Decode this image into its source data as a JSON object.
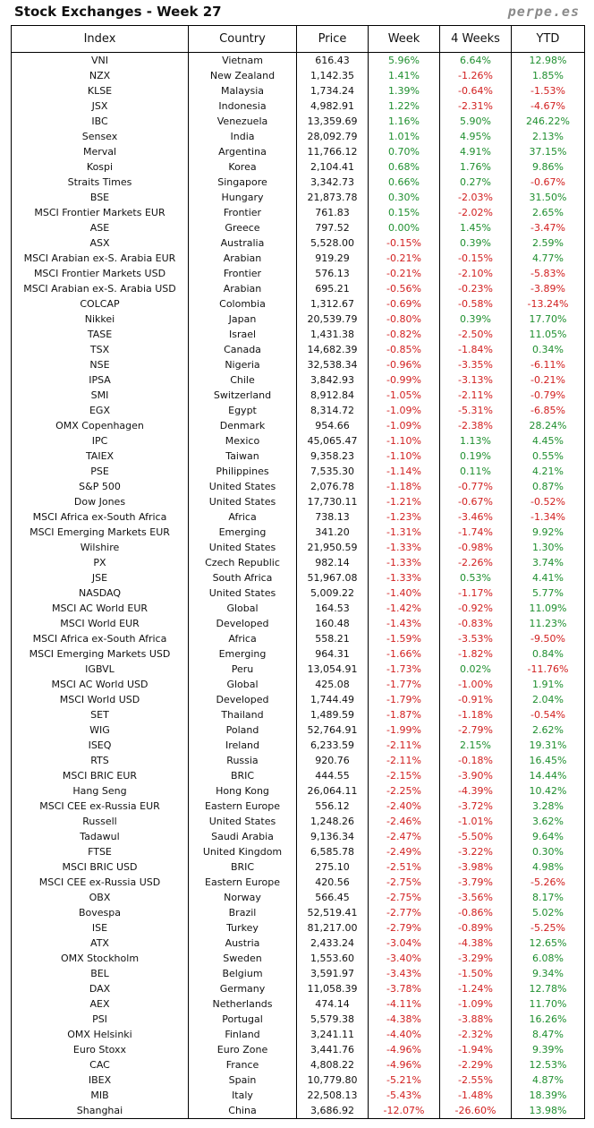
{
  "header": {
    "title": "Stock Exchanges - Week 27",
    "site": "perpe.es"
  },
  "colors": {
    "positive": "#1f8f2f",
    "negative": "#d22020"
  },
  "columns": [
    "Index",
    "Country",
    "Price",
    "Week",
    "4 Weeks",
    "YTD"
  ],
  "rows": [
    [
      "VNI",
      "Vietnam",
      "616.43",
      "5.96%",
      "6.64%",
      "12.98%"
    ],
    [
      "NZX",
      "New Zealand",
      "1,142.35",
      "1.41%",
      "-1.26%",
      "1.85%"
    ],
    [
      "KLSE",
      "Malaysia",
      "1,734.24",
      "1.39%",
      "-0.64%",
      "-1.53%"
    ],
    [
      "JSX",
      "Indonesia",
      "4,982.91",
      "1.22%",
      "-2.31%",
      "-4.67%"
    ],
    [
      "IBC",
      "Venezuela",
      "13,359.69",
      "1.16%",
      "5.90%",
      "246.22%"
    ],
    [
      "Sensex",
      "India",
      "28,092.79",
      "1.01%",
      "4.95%",
      "2.13%"
    ],
    [
      "Merval",
      "Argentina",
      "11,766.12",
      "0.70%",
      "4.91%",
      "37.15%"
    ],
    [
      "Kospi",
      "Korea",
      "2,104.41",
      "0.68%",
      "1.76%",
      "9.86%"
    ],
    [
      "Straits Times",
      "Singapore",
      "3,342.73",
      "0.66%",
      "0.27%",
      "-0.67%"
    ],
    [
      "BSE",
      "Hungary",
      "21,873.78",
      "0.30%",
      "-2.03%",
      "31.50%"
    ],
    [
      "MSCI Frontier Markets EUR",
      "Frontier",
      "761.83",
      "0.15%",
      "-2.02%",
      "2.65%"
    ],
    [
      "ASE",
      "Greece",
      "797.52",
      "0.00%",
      "1.45%",
      "-3.47%"
    ],
    [
      "ASX",
      "Australia",
      "5,528.00",
      "-0.15%",
      "0.39%",
      "2.59%"
    ],
    [
      "MSCI Arabian ex-S. Arabia EUR",
      "Arabian",
      "919.29",
      "-0.21%",
      "-0.15%",
      "4.77%"
    ],
    [
      "MSCI Frontier Markets USD",
      "Frontier",
      "576.13",
      "-0.21%",
      "-2.10%",
      "-5.83%"
    ],
    [
      "MSCI Arabian ex-S. Arabia USD",
      "Arabian",
      "695.21",
      "-0.56%",
      "-0.23%",
      "-3.89%"
    ],
    [
      "COLCAP",
      "Colombia",
      "1,312.67",
      "-0.69%",
      "-0.58%",
      "-13.24%"
    ],
    [
      "Nikkei",
      "Japan",
      "20,539.79",
      "-0.80%",
      "0.39%",
      "17.70%"
    ],
    [
      "TASE",
      "Israel",
      "1,431.38",
      "-0.82%",
      "-2.50%",
      "11.05%"
    ],
    [
      "TSX",
      "Canada",
      "14,682.39",
      "-0.85%",
      "-1.84%",
      "0.34%"
    ],
    [
      "NSE",
      "Nigeria",
      "32,538.34",
      "-0.96%",
      "-3.35%",
      "-6.11%"
    ],
    [
      "IPSA",
      "Chile",
      "3,842.93",
      "-0.99%",
      "-3.13%",
      "-0.21%"
    ],
    [
      "SMI",
      "Switzerland",
      "8,912.84",
      "-1.05%",
      "-2.11%",
      "-0.79%"
    ],
    [
      "EGX",
      "Egypt",
      "8,314.72",
      "-1.09%",
      "-5.31%",
      "-6.85%"
    ],
    [
      "OMX Copenhagen",
      "Denmark",
      "954.66",
      "-1.09%",
      "-2.38%",
      "28.24%"
    ],
    [
      "IPC",
      "Mexico",
      "45,065.47",
      "-1.10%",
      "1.13%",
      "4.45%"
    ],
    [
      "TAIEX",
      "Taiwan",
      "9,358.23",
      "-1.10%",
      "0.19%",
      "0.55%"
    ],
    [
      "PSE",
      "Philippines",
      "7,535.30",
      "-1.14%",
      "0.11%",
      "4.21%"
    ],
    [
      "S&P 500",
      "United States",
      "2,076.78",
      "-1.18%",
      "-0.77%",
      "0.87%"
    ],
    [
      "Dow Jones",
      "United States",
      "17,730.11",
      "-1.21%",
      "-0.67%",
      "-0.52%"
    ],
    [
      "MSCI Africa ex-South Africa",
      "Africa",
      "738.13",
      "-1.23%",
      "-3.46%",
      "-1.34%"
    ],
    [
      "MSCI Emerging Markets EUR",
      "Emerging",
      "341.20",
      "-1.31%",
      "-1.74%",
      "9.92%"
    ],
    [
      "Wilshire",
      "United States",
      "21,950.59",
      "-1.33%",
      "-0.98%",
      "1.30%"
    ],
    [
      "PX",
      "Czech Republic",
      "982.14",
      "-1.33%",
      "-2.26%",
      "3.74%"
    ],
    [
      "JSE",
      "South Africa",
      "51,967.08",
      "-1.33%",
      "0.53%",
      "4.41%"
    ],
    [
      "NASDAQ",
      "United States",
      "5,009.22",
      "-1.40%",
      "-1.17%",
      "5.77%"
    ],
    [
      "MSCI AC World EUR",
      "Global",
      "164.53",
      "-1.42%",
      "-0.92%",
      "11.09%"
    ],
    [
      "MSCI World EUR",
      "Developed",
      "160.48",
      "-1.43%",
      "-0.83%",
      "11.23%"
    ],
    [
      "MSCI Africa ex-South Africa",
      "Africa",
      "558.21",
      "-1.59%",
      "-3.53%",
      "-9.50%"
    ],
    [
      "MSCI Emerging Markets USD",
      "Emerging",
      "964.31",
      "-1.66%",
      "-1.82%",
      "0.84%"
    ],
    [
      "IGBVL",
      "Peru",
      "13,054.91",
      "-1.73%",
      "0.02%",
      "-11.76%"
    ],
    [
      "MSCI AC World USD",
      "Global",
      "425.08",
      "-1.77%",
      "-1.00%",
      "1.91%"
    ],
    [
      "MSCI World USD",
      "Developed",
      "1,744.49",
      "-1.79%",
      "-0.91%",
      "2.04%"
    ],
    [
      "SET",
      "Thailand",
      "1,489.59",
      "-1.87%",
      "-1.18%",
      "-0.54%"
    ],
    [
      "WIG",
      "Poland",
      "52,764.91",
      "-1.99%",
      "-2.79%",
      "2.62%"
    ],
    [
      "ISEQ",
      "Ireland",
      "6,233.59",
      "-2.11%",
      "2.15%",
      "19.31%"
    ],
    [
      "RTS",
      "Russia",
      "920.76",
      "-2.11%",
      "-0.18%",
      "16.45%"
    ],
    [
      "MSCI BRIC EUR",
      "BRIC",
      "444.55",
      "-2.15%",
      "-3.90%",
      "14.44%"
    ],
    [
      "Hang Seng",
      "Hong Kong",
      "26,064.11",
      "-2.25%",
      "-4.39%",
      "10.42%"
    ],
    [
      "MSCI CEE ex-Russia EUR",
      "Eastern Europe",
      "556.12",
      "-2.40%",
      "-3.72%",
      "3.28%"
    ],
    [
      "Russell",
      "United States",
      "1,248.26",
      "-2.46%",
      "-1.01%",
      "3.62%"
    ],
    [
      "Tadawul",
      "Saudi Arabia",
      "9,136.34",
      "-2.47%",
      "-5.50%",
      "9.64%"
    ],
    [
      "FTSE",
      "United Kingdom",
      "6,585.78",
      "-2.49%",
      "-3.22%",
      "0.30%"
    ],
    [
      "MSCI BRIC USD",
      "BRIC",
      "275.10",
      "-2.51%",
      "-3.98%",
      "4.98%"
    ],
    [
      "MSCI CEE ex-Russia USD",
      "Eastern Europe",
      "420.56",
      "-2.75%",
      "-3.79%",
      "-5.26%"
    ],
    [
      "OBX",
      "Norway",
      "566.45",
      "-2.75%",
      "-3.56%",
      "8.17%"
    ],
    [
      "Bovespa",
      "Brazil",
      "52,519.41",
      "-2.77%",
      "-0.86%",
      "5.02%"
    ],
    [
      "ISE",
      "Turkey",
      "81,217.00",
      "-2.79%",
      "-0.89%",
      "-5.25%"
    ],
    [
      "ATX",
      "Austria",
      "2,433.24",
      "-3.04%",
      "-4.38%",
      "12.65%"
    ],
    [
      "OMX Stockholm",
      "Sweden",
      "1,553.60",
      "-3.40%",
      "-3.29%",
      "6.08%"
    ],
    [
      "BEL",
      "Belgium",
      "3,591.97",
      "-3.43%",
      "-1.50%",
      "9.34%"
    ],
    [
      "DAX",
      "Germany",
      "11,058.39",
      "-3.78%",
      "-1.24%",
      "12.78%"
    ],
    [
      "AEX",
      "Netherlands",
      "474.14",
      "-4.11%",
      "-1.09%",
      "11.70%"
    ],
    [
      "PSI",
      "Portugal",
      "5,579.38",
      "-4.38%",
      "-3.88%",
      "16.26%"
    ],
    [
      "OMX Helsinki",
      "Finland",
      "3,241.11",
      "-4.40%",
      "-2.32%",
      "8.47%"
    ],
    [
      "Euro Stoxx",
      "Euro Zone",
      "3,441.76",
      "-4.96%",
      "-1.94%",
      "9.39%"
    ],
    [
      "CAC",
      "France",
      "4,808.22",
      "-4.96%",
      "-2.29%",
      "12.53%"
    ],
    [
      "IBEX",
      "Spain",
      "10,779.80",
      "-5.21%",
      "-2.55%",
      "4.87%"
    ],
    [
      "MIB",
      "Italy",
      "22,508.13",
      "-5.43%",
      "-1.48%",
      "18.39%"
    ],
    [
      "Shanghai",
      "China",
      "3,686.92",
      "-12.07%",
      "-26.60%",
      "13.98%"
    ]
  ]
}
